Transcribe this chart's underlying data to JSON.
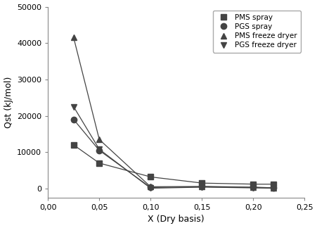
{
  "PMS_spray": {
    "x": [
      0.025,
      0.05,
      0.1,
      0.15,
      0.2,
      0.22
    ],
    "y": [
      12000,
      7000,
      3200,
      1500,
      1200,
      1200
    ],
    "marker": "s",
    "label": "PMS spray",
    "color": "#444444"
  },
  "PGS_spray": {
    "x": [
      0.025,
      0.05,
      0.1,
      0.15,
      0.2,
      0.22
    ],
    "y": [
      19000,
      10500,
      300,
      500,
      300,
      200
    ],
    "marker": "o",
    "label": "PGS spray",
    "color": "#444444"
  },
  "PMS_freeze": {
    "x": [
      0.025,
      0.05,
      0.1,
      0.15,
      0.2,
      0.22
    ],
    "y": [
      41500,
      13500,
      500,
      600,
      400,
      200
    ],
    "marker": "^",
    "label": "PMS freeze dryer",
    "color": "#444444"
  },
  "PGS_freeze": {
    "x": [
      0.025,
      0.05,
      0.1,
      0.15,
      0.2,
      0.22
    ],
    "y": [
      22500,
      10800,
      100,
      400,
      200,
      100
    ],
    "marker": "v",
    "label": "PGS freeze dryer",
    "color": "#444444"
  },
  "series_order": [
    "PMS_spray",
    "PGS_spray",
    "PMS_freeze",
    "PGS_freeze"
  ],
  "xlim": [
    0.0,
    0.25
  ],
  "ylim": [
    -2500,
    50000
  ],
  "xlabel": "X (Dry basis)",
  "ylabel": "Qst (kJ/mol)",
  "xticks": [
    0.0,
    0.05,
    0.1,
    0.15,
    0.2,
    0.25
  ],
  "xtick_labels": [
    "0,00",
    "0,05",
    "0,10",
    "0,15",
    "0,20",
    "0,25"
  ],
  "yticks": [
    0,
    10000,
    20000,
    30000,
    40000,
    50000
  ],
  "background_color": "#ffffff",
  "legend_fontsize": 7.5,
  "axis_fontsize": 9,
  "tick_fontsize": 8,
  "marker_size": 6,
  "linewidth": 0.9
}
